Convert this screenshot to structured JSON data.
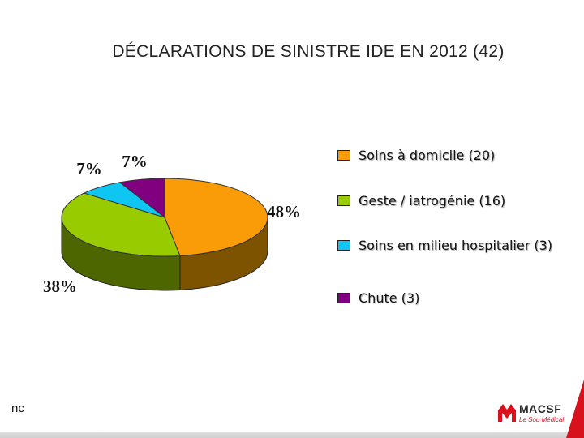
{
  "title": "DÉCLARATIONS DE SINISTRE IDE EN 2012 (42)",
  "chart_data": {
    "type": "pie",
    "title": "DÉCLARATIONS DE SINISTRE IDE EN 2012 (42)",
    "three_d": true,
    "legend_position": "right",
    "slices": [
      {
        "label": "Soins à domicile (20)",
        "count": 20,
        "percent_label": "48%",
        "color": "#f99c07",
        "side_color": "#7e5300"
      },
      {
        "label": "Geste / iatrogénie (16)",
        "count": 16,
        "percent_label": "38%",
        "color": "#99cc00",
        "side_color": "#4d6600"
      },
      {
        "label": "Soins en milieu hospitalier (3)",
        "count": 3,
        "percent_label": "7%",
        "color": "#0fc6f2",
        "side_color": "#06697f"
      },
      {
        "label": "Chute (3)",
        "count": 3,
        "percent_label": "7%",
        "color": "#800080",
        "side_color": "#400040"
      }
    ]
  },
  "footer_note": "nc",
  "logo": {
    "text": "MACSF",
    "subtext": "Le Sou Médical",
    "color": "#d7121d"
  }
}
